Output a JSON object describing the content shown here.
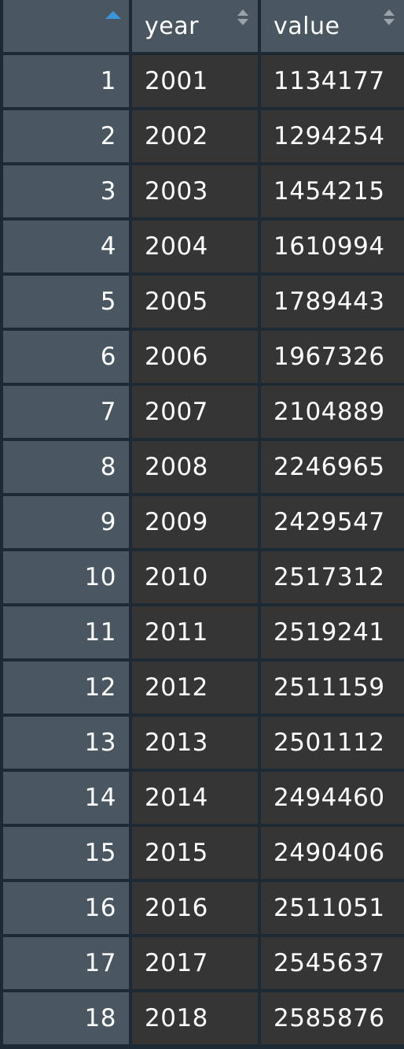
{
  "table": {
    "headers": {
      "index": "",
      "year": "year",
      "value": "value"
    },
    "sort": {
      "index_icon": "sort-ascending-icon",
      "year_icon": "sort-both-icon",
      "value_icon": "sort-both-icon",
      "active_color": "#3b95db"
    },
    "rows": [
      {
        "idx": "1",
        "year": "2001",
        "value": "1134177"
      },
      {
        "idx": "2",
        "year": "2002",
        "value": "1294254"
      },
      {
        "idx": "3",
        "year": "2003",
        "value": "1454215"
      },
      {
        "idx": "4",
        "year": "2004",
        "value": "1610994"
      },
      {
        "idx": "5",
        "year": "2005",
        "value": "1789443"
      },
      {
        "idx": "6",
        "year": "2006",
        "value": "1967326"
      },
      {
        "idx": "7",
        "year": "2007",
        "value": "2104889"
      },
      {
        "idx": "8",
        "year": "2008",
        "value": "2246965"
      },
      {
        "idx": "9",
        "year": "2009",
        "value": "2429547"
      },
      {
        "idx": "10",
        "year": "2010",
        "value": "2517312"
      },
      {
        "idx": "11",
        "year": "2011",
        "value": "2519241"
      },
      {
        "idx": "12",
        "year": "2012",
        "value": "2511159"
      },
      {
        "idx": "13",
        "year": "2013",
        "value": "2501112"
      },
      {
        "idx": "14",
        "year": "2014",
        "value": "2494460"
      },
      {
        "idx": "15",
        "year": "2015",
        "value": "2490406"
      },
      {
        "idx": "16",
        "year": "2016",
        "value": "2511051"
      },
      {
        "idx": "17",
        "year": "2017",
        "value": "2545637"
      },
      {
        "idx": "18",
        "year": "2018",
        "value": "2585876"
      }
    ]
  }
}
